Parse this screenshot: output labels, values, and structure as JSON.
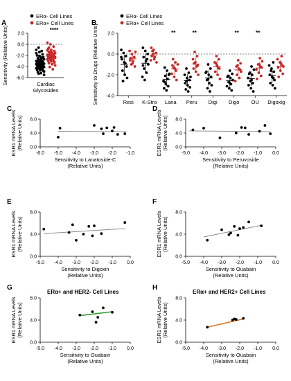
{
  "colors": {
    "er_neg": "#000000",
    "er_pos": "#c62828",
    "fit_gray": "#8c8c8c",
    "fit_green": "#2e9e2e",
    "fit_orange": "#e0701a"
  },
  "chart_data": [
    {
      "id": "A",
      "type": "scatter",
      "panel_label": "A",
      "title": "",
      "legend": [
        "ERα- Cell Lines",
        "ERα+ Cell Lines"
      ],
      "ylabel": "Sensitivity (Relative Units)",
      "xlabel": "Cardiac Glycosides",
      "ylim": [
        -6,
        2
      ],
      "yticks": [
        "2.0",
        "0.0",
        "-2.0",
        "-4.0",
        "-6.0"
      ],
      "annotation": "****",
      "series": [
        {
          "name": "ERα- Cell Lines",
          "mean": -3.5,
          "sd": 1.3,
          "values": [
            -1.0,
            -1.4,
            -1.8,
            -2.0,
            -2.2,
            -2.3,
            -2.5,
            -2.6,
            -2.7,
            -2.8,
            -2.9,
            -3.0,
            -3.0,
            -3.1,
            -3.2,
            -3.2,
            -3.3,
            -3.4,
            -3.4,
            -3.5,
            -3.5,
            -3.6,
            -3.6,
            -3.7,
            -3.7,
            -3.8,
            -3.8,
            -3.9,
            -4.0,
            -4.0,
            -4.1,
            -4.2,
            -4.2,
            -4.3,
            -4.4,
            -4.5,
            -4.6,
            -4.7,
            -4.8,
            -5.0,
            -5.2,
            -5.5,
            -0.6,
            -1.2,
            -1.6,
            -2.1,
            -2.4,
            -3.1,
            -3.3,
            -3.9,
            -4.1,
            -4.4,
            -4.9,
            -5.3
          ]
        },
        {
          "name": "ERα+ Cell Lines",
          "mean": -2.2,
          "sd": 1.2,
          "values": [
            0.3,
            0.0,
            -0.4,
            -0.8,
            -1.0,
            -1.2,
            -1.4,
            -1.5,
            -1.6,
            -1.7,
            -1.8,
            -1.9,
            -2.0,
            -2.0,
            -2.1,
            -2.2,
            -2.2,
            -2.3,
            -2.4,
            -2.4,
            -2.5,
            -2.6,
            -2.7,
            -2.8,
            -2.9,
            -3.0,
            -3.1,
            -3.2,
            -3.4,
            -3.6,
            -3.8,
            -4.1,
            -4.5,
            -1.1,
            -1.3,
            -1.9,
            -2.3,
            -2.6,
            -3.3,
            -0.6
          ]
        }
      ]
    },
    {
      "id": "B",
      "type": "scatter",
      "panel_label": "B",
      "title": "",
      "legend": [
        "ERα- Cell Lines",
        "ERα+ Cell Lines"
      ],
      "ylabel": "Sensitivity to Drugs (Relative Units)",
      "xlabel": "",
      "ylim": [
        -4,
        2
      ],
      "yticks": [
        "2.0",
        "0.0",
        "-2.0",
        "-4.0"
      ],
      "categories": [
        "Resi",
        "K-Stro",
        "Lana",
        "Peru",
        "Digi",
        "Digo",
        "OU",
        "Digoxig"
      ],
      "significance": [
        "",
        "",
        "**",
        "**",
        "",
        "**",
        "**",
        ""
      ],
      "series": [
        {
          "name": "ERα- Cell Lines",
          "groups": [
            [
              0.4,
              0.1,
              -0.2,
              -0.5,
              -0.8,
              -1.2,
              -1.6,
              -2.0,
              -2.3,
              -2.6,
              -0.9,
              -0.3
            ],
            [
              0.6,
              0.3,
              0.0,
              -0.3,
              -0.7,
              -1.0,
              -1.4,
              -1.8,
              -2.2,
              -2.5,
              -0.5,
              -1.1
            ],
            [
              -1.3,
              -1.6,
              -1.9,
              -2.1,
              -2.4,
              -2.6,
              -2.9,
              -3.1,
              -3.3,
              -3.5,
              -2.0,
              -2.7
            ],
            [
              -1.4,
              -1.8,
              -2.0,
              -2.3,
              -2.5,
              -2.8,
              -3.0,
              -3.2,
              -3.4,
              -3.6,
              -2.2,
              -2.6
            ],
            [
              -1.0,
              -1.4,
              -1.7,
              -2.0,
              -2.2,
              -2.5,
              -2.8,
              -3.0,
              -3.3,
              -3.6,
              -1.8,
              -2.4
            ],
            [
              -1.6,
              -1.9,
              -2.1,
              -2.3,
              -2.5,
              -2.7,
              -2.9,
              -3.1,
              -3.3,
              -3.5,
              -2.2,
              -2.8
            ],
            [
              -1.2,
              -1.5,
              -1.8,
              -2.0,
              -2.3,
              -2.6,
              -2.8,
              -3.0,
              -3.3,
              -3.6,
              -1.9,
              -2.5
            ],
            [
              -0.8,
              -1.1,
              -1.4,
              -1.7,
              -2.0,
              -2.2,
              -2.5,
              -2.8,
              -3.0,
              -3.3,
              -1.6,
              -2.3
            ]
          ]
        },
        {
          "name": "ERα+ Cell Lines",
          "groups": [
            [
              0.3,
              0.0,
              -0.3,
              -0.6,
              -0.9,
              -1.2,
              -0.4,
              -0.7,
              0.2,
              -1.0
            ],
            [
              0.6,
              0.4,
              0.1,
              -0.2,
              -0.5,
              -0.8,
              0.3,
              -0.3,
              -0.6,
              0.0
            ],
            [
              -0.5,
              -0.8,
              -1.0,
              -1.3,
              -1.6,
              -1.9,
              -2.2,
              -2.5,
              -1.1,
              -1.4
            ],
            [
              0.2,
              -0.2,
              -0.5,
              -0.8,
              -1.1,
              -1.4,
              -1.7,
              -2.0,
              -0.9,
              -1.2
            ],
            [
              -0.2,
              -0.5,
              -0.8,
              -1.1,
              -1.4,
              -1.7,
              -2.0,
              -2.4,
              -0.9,
              -1.3
            ],
            [
              -0.6,
              -0.9,
              -1.2,
              -1.4,
              -1.7,
              -2.0,
              -2.3,
              -2.6,
              -1.1,
              -1.5
            ],
            [
              -0.4,
              -0.7,
              -1.0,
              -1.2,
              -1.5,
              -1.8,
              -2.1,
              -2.4,
              -1.0,
              -1.3
            ],
            [
              -0.2,
              -0.5,
              -0.8,
              -1.1,
              -1.3,
              -1.6,
              -1.9,
              -2.2,
              -0.9,
              -1.2
            ]
          ]
        }
      ]
    },
    {
      "id": "C",
      "type": "scatter",
      "panel_label": "C",
      "title": "",
      "xlabel": "Sensitivity to Lanatoside-C (Relative  Units)",
      "ylabel": "ESR1 mRNA Levels (Relative Units)",
      "xlim": [
        -6,
        -1
      ],
      "ylim": [
        0,
        8
      ],
      "xticks": [
        "-6.0",
        "-5.0",
        "-4.0",
        "-3.0",
        "-2.0",
        "-1.0"
      ],
      "yticks": [
        "8.0",
        "4.0",
        "0.0"
      ],
      "fit_color": "fit_gray",
      "fit": [
        [
          -5.0,
          4.5
        ],
        [
          -1.2,
          4.4
        ]
      ],
      "x": [
        -5.0,
        -4.9,
        -3.0,
        -2.6,
        -2.5,
        -2.3,
        -2.0,
        -1.9,
        -1.7,
        -1.3
      ],
      "y": [
        2.8,
        5.4,
        6.2,
        5.2,
        3.8,
        5.5,
        4.6,
        5.6,
        3.6,
        3.8
      ]
    },
    {
      "id": "D",
      "type": "scatter",
      "panel_label": "D",
      "title": "",
      "xlabel": "Sensitivity to Peruvoside (Relative  Units)",
      "ylabel": "ESR1 mRNA Levels (Relative Units)",
      "xlim": [
        -5,
        0
      ],
      "ylim": [
        0,
        8
      ],
      "xticks": [
        "-5.0",
        "-4.0",
        "-3.0",
        "-2.0",
        "-1.0",
        "0.0"
      ],
      "yticks": [
        "8.0",
        "4.0",
        "0.0"
      ],
      "fit_color": "fit_gray",
      "fit": [
        [
          -4.8,
          4.6
        ],
        [
          -0.3,
          4.4
        ]
      ],
      "x": [
        -4.6,
        -4.0,
        -3.1,
        -2.2,
        -1.9,
        -1.7,
        -1.5,
        -0.9,
        -0.6,
        -0.3
      ],
      "y": [
        4.9,
        5.4,
        2.6,
        4.0,
        5.6,
        5.5,
        3.6,
        4.5,
        6.2,
        3.8
      ]
    },
    {
      "id": "E",
      "type": "scatter",
      "panel_label": "E",
      "title": "",
      "xlabel": "Sensitivity to Digoxin (Relative  Units)",
      "ylabel": "ESR1 mRNA Levels (Relative Units)",
      "xlim": [
        -5,
        0
      ],
      "ylim": [
        0,
        8
      ],
      "xticks": [
        "-5.0",
        "-4.0",
        "-3.0",
        "-2.0",
        "-1.0",
        "0.0"
      ],
      "yticks": [
        "8.0",
        "4.0",
        "0.0"
      ],
      "fit_color": "fit_gray",
      "fit": [
        [
          -4.8,
          4.1
        ],
        [
          -0.3,
          5.0
        ]
      ],
      "x": [
        -4.8,
        -3.4,
        -3.2,
        -3.0,
        -2.6,
        -2.3,
        -2.1,
        -2.0,
        -1.6,
        -0.3
      ],
      "y": [
        4.9,
        4.3,
        5.7,
        2.9,
        4.0,
        5.4,
        3.7,
        5.5,
        4.1,
        6.1
      ]
    },
    {
      "id": "F",
      "type": "scatter",
      "panel_label": "F",
      "title": "",
      "xlabel": "Sensitivity to Ouabain (Relative  Units)",
      "ylabel": "ESR1 mRNA Levels (Relative Units)",
      "xlim": [
        -5,
        0
      ],
      "ylim": [
        0,
        8
      ],
      "xticks": [
        "-5.0",
        "-4.0",
        "-3.0",
        "-2.0",
        "-1.0",
        "0.0"
      ],
      "yticks": [
        "8.0",
        "4.0",
        "0.0"
      ],
      "fit_color": "fit_gray",
      "fit": [
        [
          -4.0,
          3.5
        ],
        [
          -0.8,
          5.6
        ]
      ],
      "x": [
        -3.8,
        -3.0,
        -2.6,
        -2.5,
        -2.3,
        -2.1,
        -2.0,
        -1.8,
        -1.5,
        -0.8
      ],
      "y": [
        2.9,
        4.8,
        3.9,
        4.2,
        5.4,
        3.8,
        5.0,
        5.2,
        6.2,
        5.5
      ]
    },
    {
      "id": "G",
      "type": "scatter",
      "panel_label": "G",
      "title": "ERα+ and HER2- Cell Lines",
      "xlabel": "Sensitivity to Ouabain (Relative  Units)",
      "ylabel": "ESR1 mRNA Levels (Relative Units)",
      "xlim": [
        -5,
        0
      ],
      "ylim": [
        0,
        8
      ],
      "xticks": [
        "-5.0",
        "-4.0",
        "-3.0",
        "-2.0",
        "-1.0",
        "0.0"
      ],
      "yticks": [
        "8.0",
        "4.0",
        "0.0"
      ],
      "fit_color": "fit_green",
      "fit": [
        [
          -2.8,
          4.8
        ],
        [
          -1.0,
          5.5
        ]
      ],
      "x": [
        -2.8,
        -2.1,
        -1.9,
        -1.8,
        -1.5,
        -1.0
      ],
      "y": [
        4.9,
        5.5,
        3.6,
        4.5,
        6.2,
        5.4
      ]
    },
    {
      "id": "H",
      "type": "scatter",
      "panel_label": "H",
      "title": "ERα+ and HER2+ Cell Lines",
      "xlabel": "Sensitivity to Ouabain (Relative  Units)",
      "ylabel": "ESR1 mRNA Levels (Relative Units)",
      "xlim": [
        -5,
        0
      ],
      "ylim": [
        0,
        8
      ],
      "xticks": [
        "-5.0",
        "-4.0",
        "-3.0",
        "-2.0",
        "-1.0",
        "0.0"
      ],
      "yticks": [
        "8.0",
        "4.0",
        "0.0"
      ],
      "fit_color": "fit_orange",
      "fit": [
        [
          -3.8,
          2.7
        ],
        [
          -1.8,
          4.2
        ]
      ],
      "x": [
        -3.8,
        -2.4,
        -2.3,
        -2.2,
        -1.8
      ],
      "y": [
        2.7,
        4.0,
        4.2,
        4.1,
        4.3
      ]
    }
  ]
}
